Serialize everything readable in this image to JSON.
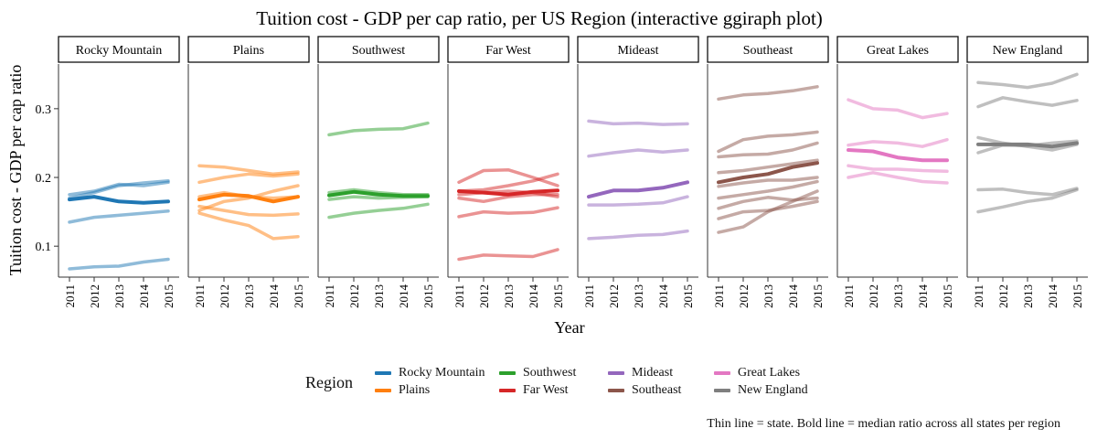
{
  "chart_data": {
    "type": "line",
    "title": "Tuition cost - GDP per cap ratio, per US Region (interactive ggiraph plot)",
    "xlabel": "Year",
    "ylabel": "Tuition cost - GDP per cap ratio",
    "x": [
      2011,
      2012,
      2013,
      2014,
      2015
    ],
    "x_tick_labels": [
      "2011",
      "2012",
      "2013",
      "2014",
      "2015"
    ],
    "ylim": [
      0.055,
      0.365
    ],
    "y_ticks": [
      0.1,
      0.2,
      0.3
    ],
    "y_tick_labels": [
      "0.1",
      "0.2",
      "0.3"
    ],
    "facets": [
      {
        "region": "Rocky Mountain",
        "color": "#1f77b4",
        "median": [
          0.168,
          0.172,
          0.165,
          0.163,
          0.165
        ],
        "states": [
          [
            0.17,
            0.178,
            0.188,
            0.192,
            0.195
          ],
          [
            0.175,
            0.18,
            0.19,
            0.188,
            0.193
          ],
          [
            0.135,
            0.142,
            0.145,
            0.148,
            0.151
          ],
          [
            0.067,
            0.07,
            0.071,
            0.077,
            0.081
          ]
        ]
      },
      {
        "region": "Plains",
        "color": "#ff7f0e",
        "median": [
          0.168,
          0.175,
          0.173,
          0.165,
          0.172
        ],
        "states": [
          [
            0.217,
            0.215,
            0.21,
            0.205,
            0.208
          ],
          [
            0.193,
            0.2,
            0.205,
            0.202,
            0.205
          ],
          [
            0.172,
            0.178,
            0.172,
            0.17,
            0.172
          ],
          [
            0.152,
            0.165,
            0.17,
            0.18,
            0.188
          ],
          [
            0.158,
            0.152,
            0.146,
            0.145,
            0.147
          ],
          [
            0.148,
            0.138,
            0.13,
            0.111,
            0.114
          ]
        ]
      },
      {
        "region": "Southwest",
        "color": "#2ca02c",
        "median": [
          0.174,
          0.179,
          0.175,
          0.173,
          0.173
        ],
        "states": [
          [
            0.262,
            0.268,
            0.27,
            0.271,
            0.279
          ],
          [
            0.178,
            0.182,
            0.178,
            0.175,
            0.175
          ],
          [
            0.168,
            0.172,
            0.17,
            0.171,
            0.172
          ],
          [
            0.142,
            0.148,
            0.152,
            0.155,
            0.161
          ]
        ]
      },
      {
        "region": "Far West",
        "color": "#d62728",
        "median": [
          0.18,
          0.178,
          0.175,
          0.179,
          0.181
        ],
        "states": [
          [
            0.193,
            0.21,
            0.211,
            0.2,
            0.188
          ],
          [
            0.18,
            0.182,
            0.188,
            0.195,
            0.205
          ],
          [
            0.175,
            0.178,
            0.18,
            0.178,
            0.172
          ],
          [
            0.17,
            0.165,
            0.172,
            0.175,
            0.175
          ],
          [
            0.143,
            0.15,
            0.148,
            0.149,
            0.156
          ],
          [
            0.081,
            0.087,
            0.086,
            0.085,
            0.095
          ]
        ]
      },
      {
        "region": "Mideast",
        "color": "#9467bd",
        "median": [
          0.172,
          0.181,
          0.181,
          0.185,
          0.193
        ],
        "states": [
          [
            0.282,
            0.278,
            0.279,
            0.277,
            0.278
          ],
          [
            0.231,
            0.236,
            0.24,
            0.237,
            0.24
          ],
          [
            0.16,
            0.16,
            0.161,
            0.163,
            0.172
          ],
          [
            0.111,
            0.113,
            0.116,
            0.117,
            0.122
          ]
        ]
      },
      {
        "region": "Southeast",
        "color": "#8c564b",
        "median": [
          0.193,
          0.2,
          0.205,
          0.215,
          0.221
        ],
        "states": [
          [
            0.314,
            0.32,
            0.322,
            0.326,
            0.332
          ],
          [
            0.238,
            0.255,
            0.26,
            0.262,
            0.266
          ],
          [
            0.23,
            0.233,
            0.234,
            0.24,
            0.25
          ],
          [
            0.207,
            0.21,
            0.215,
            0.22,
            0.225
          ],
          [
            0.187,
            0.192,
            0.196,
            0.196,
            0.2
          ],
          [
            0.17,
            0.175,
            0.18,
            0.186,
            0.194
          ],
          [
            0.155,
            0.165,
            0.171,
            0.167,
            0.17
          ],
          [
            0.14,
            0.15,
            0.152,
            0.158,
            0.165
          ],
          [
            0.12,
            0.128,
            0.15,
            0.165,
            0.18
          ]
        ]
      },
      {
        "region": "Great Lakes",
        "color": "#e377c2",
        "median": [
          0.24,
          0.238,
          0.229,
          0.225,
          0.225
        ],
        "states": [
          [
            0.313,
            0.3,
            0.298,
            0.287,
            0.293
          ],
          [
            0.247,
            0.252,
            0.25,
            0.245,
            0.255
          ],
          [
            0.217,
            0.212,
            0.212,
            0.21,
            0.209
          ],
          [
            0.2,
            0.207,
            0.2,
            0.194,
            0.192
          ]
        ]
      },
      {
        "region": "New England",
        "color": "#7f7f7f",
        "median": [
          0.248,
          0.248,
          0.248,
          0.245,
          0.25
        ],
        "states": [
          [
            0.338,
            0.335,
            0.331,
            0.337,
            0.35
          ],
          [
            0.303,
            0.316,
            0.31,
            0.305,
            0.312
          ],
          [
            0.258,
            0.25,
            0.245,
            0.24,
            0.248
          ],
          [
            0.236,
            0.247,
            0.246,
            0.25,
            0.253
          ],
          [
            0.182,
            0.183,
            0.178,
            0.175,
            0.184
          ],
          [
            0.15,
            0.157,
            0.165,
            0.17,
            0.182
          ]
        ]
      }
    ],
    "legend_title": "Region",
    "legend_position": "bottom",
    "grid": false
  },
  "note": "Thin line = state. Bold line = median ratio across all states per region"
}
